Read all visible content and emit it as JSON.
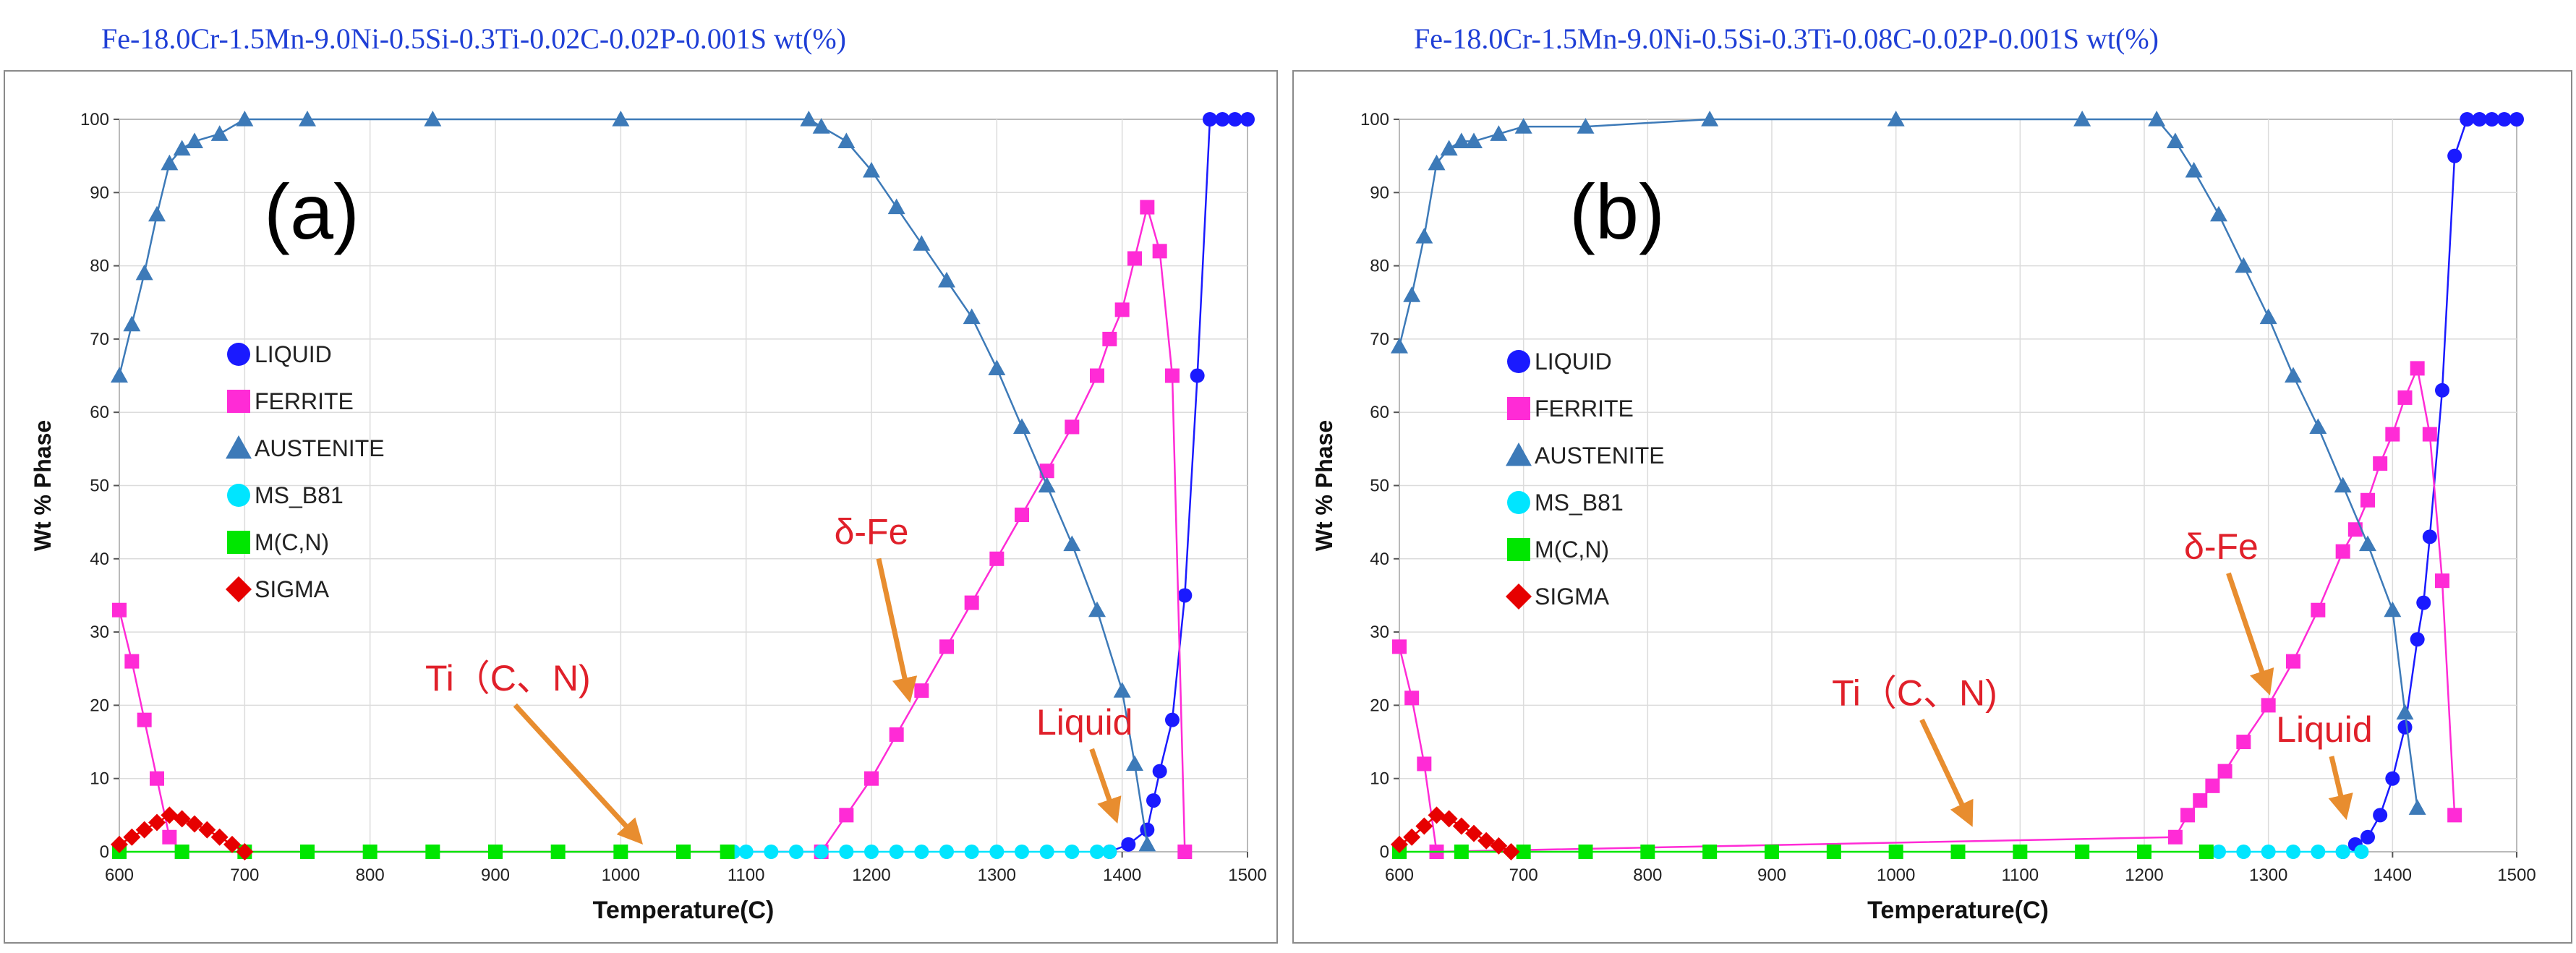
{
  "chart_data": [
    {
      "id": "a",
      "type": "line",
      "composition": "Fe-18.0Cr-1.5Mn-9.0Ni-0.5Si-0.3Ti-0.02C-0.02P-0.001S wt(%)",
      "panel_label": "(a)",
      "xlabel": "Temperature(C)",
      "ylabel": "Wt % Phase",
      "xlim": [
        600,
        1500
      ],
      "ylim": [
        0,
        100
      ],
      "xticks": [
        600,
        700,
        800,
        900,
        1000,
        1100,
        1200,
        1300,
        1400,
        1500
      ],
      "yticks": [
        0,
        10,
        20,
        30,
        40,
        50,
        60,
        70,
        80,
        90,
        100
      ],
      "grid": true,
      "legend_position": "center-left",
      "series": [
        {
          "name": "LIQUID",
          "color": "#1a1aff",
          "marker": "circle",
          "x": [
            1390,
            1405,
            1420,
            1425,
            1430,
            1440,
            1450,
            1460,
            1470,
            1480,
            1490,
            1500
          ],
          "y": [
            0,
            1,
            3,
            7,
            11,
            18,
            35,
            65,
            100,
            100,
            100,
            100
          ]
        },
        {
          "name": "FERRITE",
          "color": "#ff2bd6",
          "marker": "square",
          "x": [
            600,
            610,
            620,
            630,
            640,
            650,
            1160,
            1180,
            1200,
            1220,
            1240,
            1260,
            1280,
            1300,
            1320,
            1340,
            1360,
            1380,
            1390,
            1400,
            1410,
            1420,
            1430,
            1440,
            1450
          ],
          "y": [
            33,
            26,
            18,
            10,
            2,
            0,
            0,
            5,
            10,
            16,
            22,
            28,
            34,
            40,
            46,
            52,
            58,
            65,
            70,
            74,
            81,
            88,
            82,
            65,
            0
          ]
        },
        {
          "name": "AUSTENITE",
          "color": "#3d7ab8",
          "marker": "triangle",
          "x": [
            600,
            610,
            620,
            630,
            640,
            650,
            660,
            680,
            700,
            750,
            850,
            1000,
            1150,
            1160,
            1180,
            1200,
            1220,
            1240,
            1260,
            1280,
            1300,
            1320,
            1340,
            1360,
            1380,
            1400,
            1410,
            1420
          ],
          "y": [
            65,
            72,
            79,
            87,
            94,
            96,
            97,
            98,
            100,
            100,
            100,
            100,
            100,
            99,
            97,
            93,
            88,
            83,
            78,
            73,
            66,
            58,
            50,
            42,
            33,
            22,
            12,
            1
          ]
        },
        {
          "name": "MS_B81",
          "color": "#00e5ff",
          "marker": "circle",
          "x": [
            1090,
            1100,
            1120,
            1140,
            1160,
            1180,
            1200,
            1220,
            1240,
            1260,
            1280,
            1300,
            1320,
            1340,
            1360,
            1380,
            1390
          ],
          "y": [
            0,
            0,
            0,
            0,
            0,
            0,
            0,
            0,
            0,
            0,
            0,
            0,
            0,
            0,
            0,
            0,
            0
          ]
        },
        {
          "name": "M(C,N)",
          "color": "#00e600",
          "marker": "square",
          "x": [
            600,
            650,
            700,
            750,
            800,
            850,
            900,
            950,
            1000,
            1050,
            1085
          ],
          "y": [
            0,
            0,
            0,
            0,
            0,
            0,
            0,
            0,
            0,
            0,
            0
          ]
        },
        {
          "name": "SIGMA",
          "color": "#e60000",
          "marker": "diamond",
          "x": [
            600,
            610,
            620,
            630,
            640,
            650,
            660,
            670,
            680,
            690,
            700
          ],
          "y": [
            1,
            2,
            3,
            4,
            5,
            4.5,
            3.8,
            3,
            2,
            1,
            0
          ]
        }
      ],
      "annotations": [
        {
          "text": "δ-Fe",
          "x": 1200,
          "y": 42,
          "arrow_to": [
            1230,
            21
          ]
        },
        {
          "text": "Ti（C、N)",
          "x": 910,
          "y": 22,
          "arrow_to": [
            1015,
            1.5
          ]
        },
        {
          "text": "Liquid",
          "x": 1370,
          "y": 16,
          "arrow_to": [
            1395,
            4.5
          ]
        }
      ]
    },
    {
      "id": "b",
      "type": "line",
      "composition": "Fe-18.0Cr-1.5Mn-9.0Ni-0.5Si-0.3Ti-0.08C-0.02P-0.001S wt(%)",
      "panel_label": "(b)",
      "xlabel": "Temperature(C)",
      "ylabel": "Wt % Phase",
      "xlim": [
        600,
        1500
      ],
      "ylim": [
        0,
        100
      ],
      "xticks": [
        600,
        700,
        800,
        900,
        1000,
        1100,
        1200,
        1300,
        1400,
        1500
      ],
      "yticks": [
        0,
        10,
        20,
        30,
        40,
        50,
        60,
        70,
        80,
        90,
        100
      ],
      "grid": true,
      "legend_position": "center-left",
      "series": [
        {
          "name": "LIQUID",
          "color": "#1a1aff",
          "marker": "circle",
          "x": [
            1360,
            1370,
            1380,
            1390,
            1400,
            1410,
            1420,
            1425,
            1430,
            1440,
            1450,
            1460,
            1470,
            1480,
            1490,
            1500
          ],
          "y": [
            0,
            1,
            2,
            5,
            10,
            17,
            29,
            34,
            43,
            63,
            95,
            100,
            100,
            100,
            100,
            100
          ]
        },
        {
          "name": "FERRITE",
          "color": "#ff2bd6",
          "marker": "square",
          "x": [
            600,
            610,
            620,
            630,
            1225,
            1235,
            1245,
            1255,
            1265,
            1280,
            1300,
            1320,
            1340,
            1360,
            1370,
            1380,
            1390,
            1400,
            1410,
            1420,
            1430,
            1440,
            1450
          ],
          "y": [
            28,
            21,
            12,
            0,
            2,
            5,
            7,
            9,
            11,
            15,
            20,
            26,
            33,
            41,
            44,
            48,
            53,
            57,
            62,
            66,
            57,
            37,
            5
          ]
        },
        {
          "name": "AUSTENITE",
          "color": "#3d7ab8",
          "marker": "triangle",
          "x": [
            600,
            610,
            620,
            630,
            640,
            650,
            660,
            680,
            700,
            750,
            850,
            1000,
            1150,
            1210,
            1225,
            1240,
            1260,
            1280,
            1300,
            1320,
            1340,
            1360,
            1380,
            1400,
            1410,
            1420
          ],
          "y": [
            69,
            76,
            84,
            94,
            96,
            97,
            97,
            98,
            99,
            99,
            100,
            100,
            100,
            100,
            97,
            93,
            87,
            80,
            73,
            65,
            58,
            50,
            42,
            33,
            19,
            6
          ]
        },
        {
          "name": "MS_B81",
          "color": "#00e5ff",
          "marker": "circle",
          "x": [
            1260,
            1280,
            1300,
            1320,
            1340,
            1360,
            1375
          ],
          "y": [
            0,
            0,
            0,
            0,
            0,
            0,
            0
          ]
        },
        {
          "name": "M(C,N)",
          "color": "#00e600",
          "marker": "square",
          "x": [
            600,
            650,
            700,
            750,
            800,
            850,
            900,
            950,
            1000,
            1050,
            1100,
            1150,
            1200,
            1250
          ],
          "y": [
            0,
            0,
            0,
            0,
            0,
            0,
            0,
            0,
            0,
            0,
            0,
            0,
            0,
            0
          ]
        },
        {
          "name": "SIGMA",
          "color": "#e60000",
          "marker": "diamond",
          "x": [
            600,
            610,
            620,
            630,
            640,
            650,
            660,
            670,
            680,
            690
          ],
          "y": [
            1,
            2,
            3.5,
            5,
            4.5,
            3.5,
            2.5,
            1.5,
            0.8,
            0
          ]
        }
      ],
      "annotations": [
        {
          "text": "δ-Fe",
          "x": 1262,
          "y": 40,
          "arrow_to": [
            1300,
            22
          ]
        },
        {
          "text": "Ti（C、N)",
          "x": 1015,
          "y": 20,
          "arrow_to": [
            1060,
            4
          ]
        },
        {
          "text": "Liquid",
          "x": 1345,
          "y": 15,
          "arrow_to": [
            1362,
            5
          ]
        }
      ]
    }
  ]
}
